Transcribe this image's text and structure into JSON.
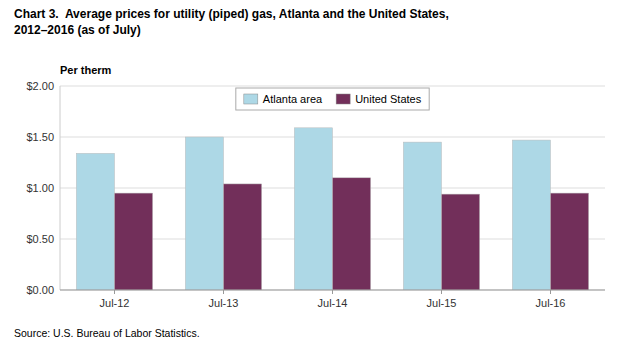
{
  "chart_data": {
    "type": "bar",
    "title": "Chart 3.  Average prices for utility (piped) gas, Atlanta and the United States,",
    "subtitle": "2012–2016 (as of July)",
    "ylabel": "Per therm",
    "annotations": [
      "Source: U.S. Bureau of Labor Statistics."
    ],
    "categories": [
      "Jul-12",
      "Jul-13",
      "Jul-14",
      "Jul-15",
      "Jul-16"
    ],
    "series": [
      {
        "name": "Atlanta area",
        "color": "#ADD8E6",
        "values": [
          1.34,
          1.5,
          1.59,
          1.45,
          1.47
        ]
      },
      {
        "name": "United States",
        "color": "#722F5A",
        "values": [
          0.95,
          1.04,
          1.1,
          0.94,
          0.95
        ]
      }
    ],
    "ylim": [
      0,
      2.0
    ],
    "yticks": [
      {
        "value": 0.0,
        "label": "$0.00"
      },
      {
        "value": 0.5,
        "label": "$0.50"
      },
      {
        "value": 1.0,
        "label": "$1.00"
      },
      {
        "value": 1.5,
        "label": "$1.50"
      },
      {
        "value": 2.0,
        "label": "$2.00"
      }
    ],
    "grid": true,
    "legend": "top"
  }
}
